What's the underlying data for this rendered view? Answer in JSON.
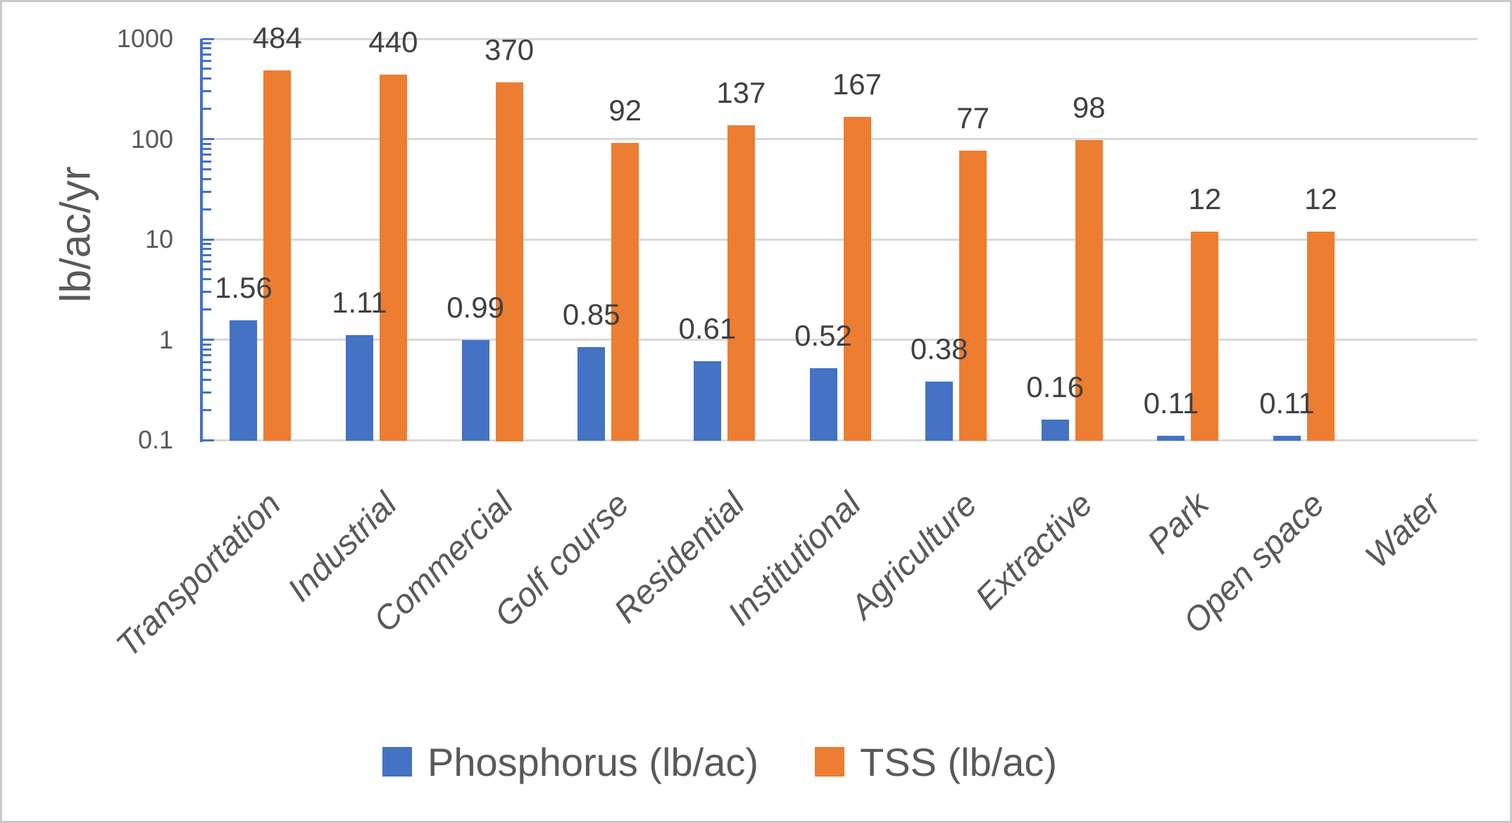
{
  "chart_data": {
    "type": "bar",
    "title": "",
    "y_axis_label": "lb/ac/yr",
    "y_scale": "log",
    "ylim": [
      0.1,
      1000
    ],
    "grid": true,
    "legend_position": "bottom",
    "y_ticks": [
      {
        "label": "1000",
        "value": 1000
      },
      {
        "label": "100",
        "value": 100
      },
      {
        "label": "10",
        "value": 10
      },
      {
        "label": "1",
        "value": 1
      },
      {
        "label": "0.1",
        "value": 0.1
      }
    ],
    "categories": [
      "Transportation",
      "Industrial",
      "Commercial",
      "Golf course",
      "Residential",
      "Institutional",
      "Agriculture",
      "Extractive",
      "Park",
      "Open space",
      "Water"
    ],
    "series": [
      {
        "name": "Phosphorus (lb/ac)",
        "color": "#4472C4",
        "values": [
          1.56,
          1.11,
          0.99,
          0.85,
          0.61,
          0.52,
          0.38,
          0.16,
          0.11,
          0.11,
          null
        ],
        "labels": [
          "1.56",
          "1.11",
          "0.99",
          "0.85",
          "0.61",
          "0.52",
          "0.38",
          "0.16",
          "0.11",
          "0.11",
          ""
        ]
      },
      {
        "name": "TSS (lb/ac)",
        "color": "#ED7D31",
        "values": [
          484,
          440,
          370,
          92,
          137,
          167,
          77,
          98,
          12,
          12,
          null
        ],
        "labels": [
          "484",
          "440",
          "370",
          "92",
          "137",
          "167",
          "77",
          "98",
          "12",
          "12",
          ""
        ]
      }
    ]
  },
  "colors": {
    "phosphorus": "#4472C4",
    "tss": "#ED7D31",
    "axis_text": "#595959",
    "data_label": "#404040",
    "gridline": "#d9d9d9",
    "frame_border": "#c9c9c9"
  }
}
